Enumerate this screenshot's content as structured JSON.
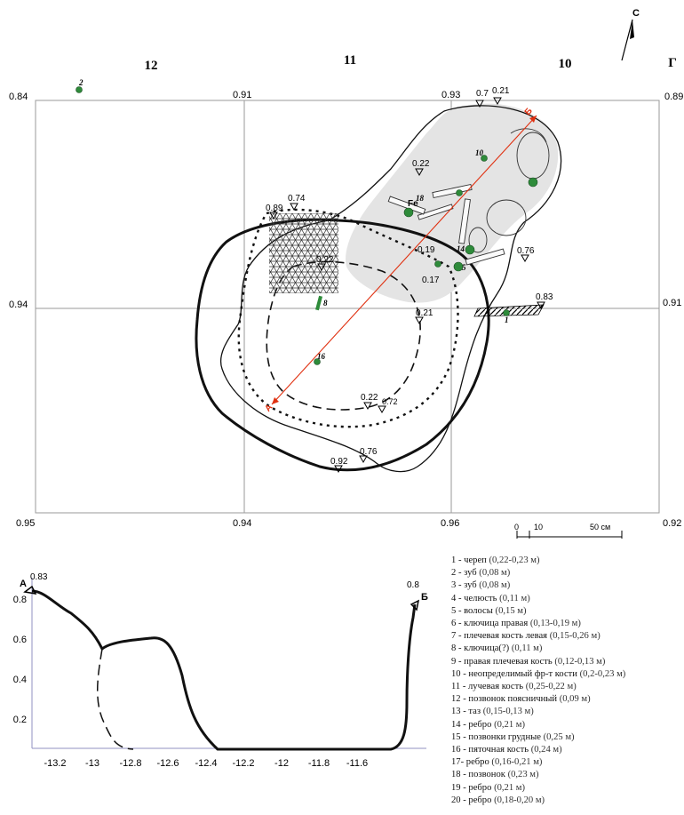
{
  "plan": {
    "squares": [
      {
        "id": "sq-12",
        "label": "12"
      },
      {
        "id": "sq-11",
        "label": "11"
      },
      {
        "id": "sq-10",
        "label": "10"
      },
      {
        "id": "sq-g",
        "label": "Г"
      }
    ],
    "north_label": "С",
    "grid_labels": [
      {
        "id": "g1",
        "label": "0.84"
      },
      {
        "id": "g2",
        "label": "0.91"
      },
      {
        "id": "g3",
        "label": "0.93"
      },
      {
        "id": "g4",
        "label": "0.89"
      },
      {
        "id": "g5",
        "label": "0.94"
      },
      {
        "id": "g6",
        "label": "0.91"
      },
      {
        "id": "g7",
        "label": "0.95"
      },
      {
        "id": "g8",
        "label": "0.94"
      },
      {
        "id": "g9",
        "label": "0.96"
      },
      {
        "id": "g10",
        "label": "0.92"
      }
    ],
    "depth_marks": [
      {
        "id": "d1",
        "label": "0.7"
      },
      {
        "id": "d2",
        "label": "0.21"
      },
      {
        "id": "d3",
        "label": "0.22"
      },
      {
        "id": "d4",
        "label": "0.74"
      },
      {
        "id": "d5",
        "label": "0.89"
      },
      {
        "id": "d6",
        "label": "0.22"
      },
      {
        "id": "d7",
        "label": "0.19"
      },
      {
        "id": "d8",
        "label": "0.17"
      },
      {
        "id": "d9",
        "label": "0.76"
      },
      {
        "id": "d10",
        "label": "0.83"
      },
      {
        "id": "d11",
        "label": "0.21"
      },
      {
        "id": "d12",
        "label": "0.22"
      },
      {
        "id": "d13",
        "label": "0.72"
      },
      {
        "id": "d14",
        "label": "0.76"
      },
      {
        "id": "d15",
        "label": "0.92"
      }
    ],
    "point_numbers": [
      {
        "id": "p2",
        "label": "2"
      },
      {
        "id": "p18",
        "label": "18"
      },
      {
        "id": "p16",
        "label": "16"
      },
      {
        "id": "p14",
        "label": "14"
      },
      {
        "id": "p5",
        "label": "5"
      },
      {
        "id": "p8",
        "label": "8"
      },
      {
        "id": "p10",
        "label": "10"
      },
      {
        "id": "p1",
        "label": "1"
      }
    ],
    "iron_label": "Fe",
    "section_end_b": "Б",
    "section_end_a": "А",
    "scale": {
      "start": "0",
      "mid": "10",
      "end": "50 см"
    }
  },
  "section": {
    "y_ticks": [
      "0.8",
      "0.6",
      "0.4",
      "0.2"
    ],
    "x_ticks": [
      "-13.2",
      "-13",
      "-12.8",
      "-12.6",
      "-12.4",
      "-12.2",
      "-12",
      "-11.8",
      "-11.6"
    ],
    "label_a": "А",
    "label_b": "Б",
    "depth_a": "0.83",
    "depth_b": "0.8"
  },
  "legend": [
    {
      "label": "1 - череп",
      "depth": "(0,22-0,23 м)"
    },
    {
      "label": "2 - зуб",
      "depth": "(0,08 м)"
    },
    {
      "label": "3 - зуб",
      "depth": "(0,08 м)"
    },
    {
      "label": "4 - челюсть",
      "depth": "(0,11 м)"
    },
    {
      "label": "5 - волосы",
      "depth": "(0,15 м)"
    },
    {
      "label": "6 - ключица правая",
      "depth": "(0,13-0,19 м)"
    },
    {
      "label": "7 - плечевая кость левая",
      "depth": "(0,15-0,26 м)"
    },
    {
      "label": "8 - ключица(?)",
      "depth": "(0,11 м)"
    },
    {
      "label": "9 - правая плечевая кость",
      "depth": "(0,12-0,13 м)"
    },
    {
      "label": "10 - неопределимый фр-т кости",
      "depth": "(0,2-0,23 м)"
    },
    {
      "label": "11 - лучевая кость",
      "depth": "(0,25-0,22 м)"
    },
    {
      "label": "12 - позвонок поясничный",
      "depth": "(0,09 м)"
    },
    {
      "label": "13 - таз",
      "depth": "(0,15-0,13 м)"
    },
    {
      "label": "14 - ребро",
      "depth": "(0,21 м)"
    },
    {
      "label": "15 - позвонки грудные",
      "depth": "(0,25 м)"
    },
    {
      "label": "16 - пяточная кость",
      "depth": "(0,24 м)"
    },
    {
      "label": "17- ребро",
      "depth": "(0,16-0,21 м)"
    },
    {
      "label": "18 - позвонок",
      "depth": "(0,23 м)"
    },
    {
      "label": "19 - ребро",
      "depth": "(0,21 м)"
    },
    {
      "label": "20 - ребро",
      "depth": "(0,18-0,20 м)"
    }
  ],
  "colors": {
    "find_green": "#2e8b3a",
    "section_line": "#e03010",
    "bone_fill": "#e4e4e4",
    "grid": "#9a9a9a"
  }
}
